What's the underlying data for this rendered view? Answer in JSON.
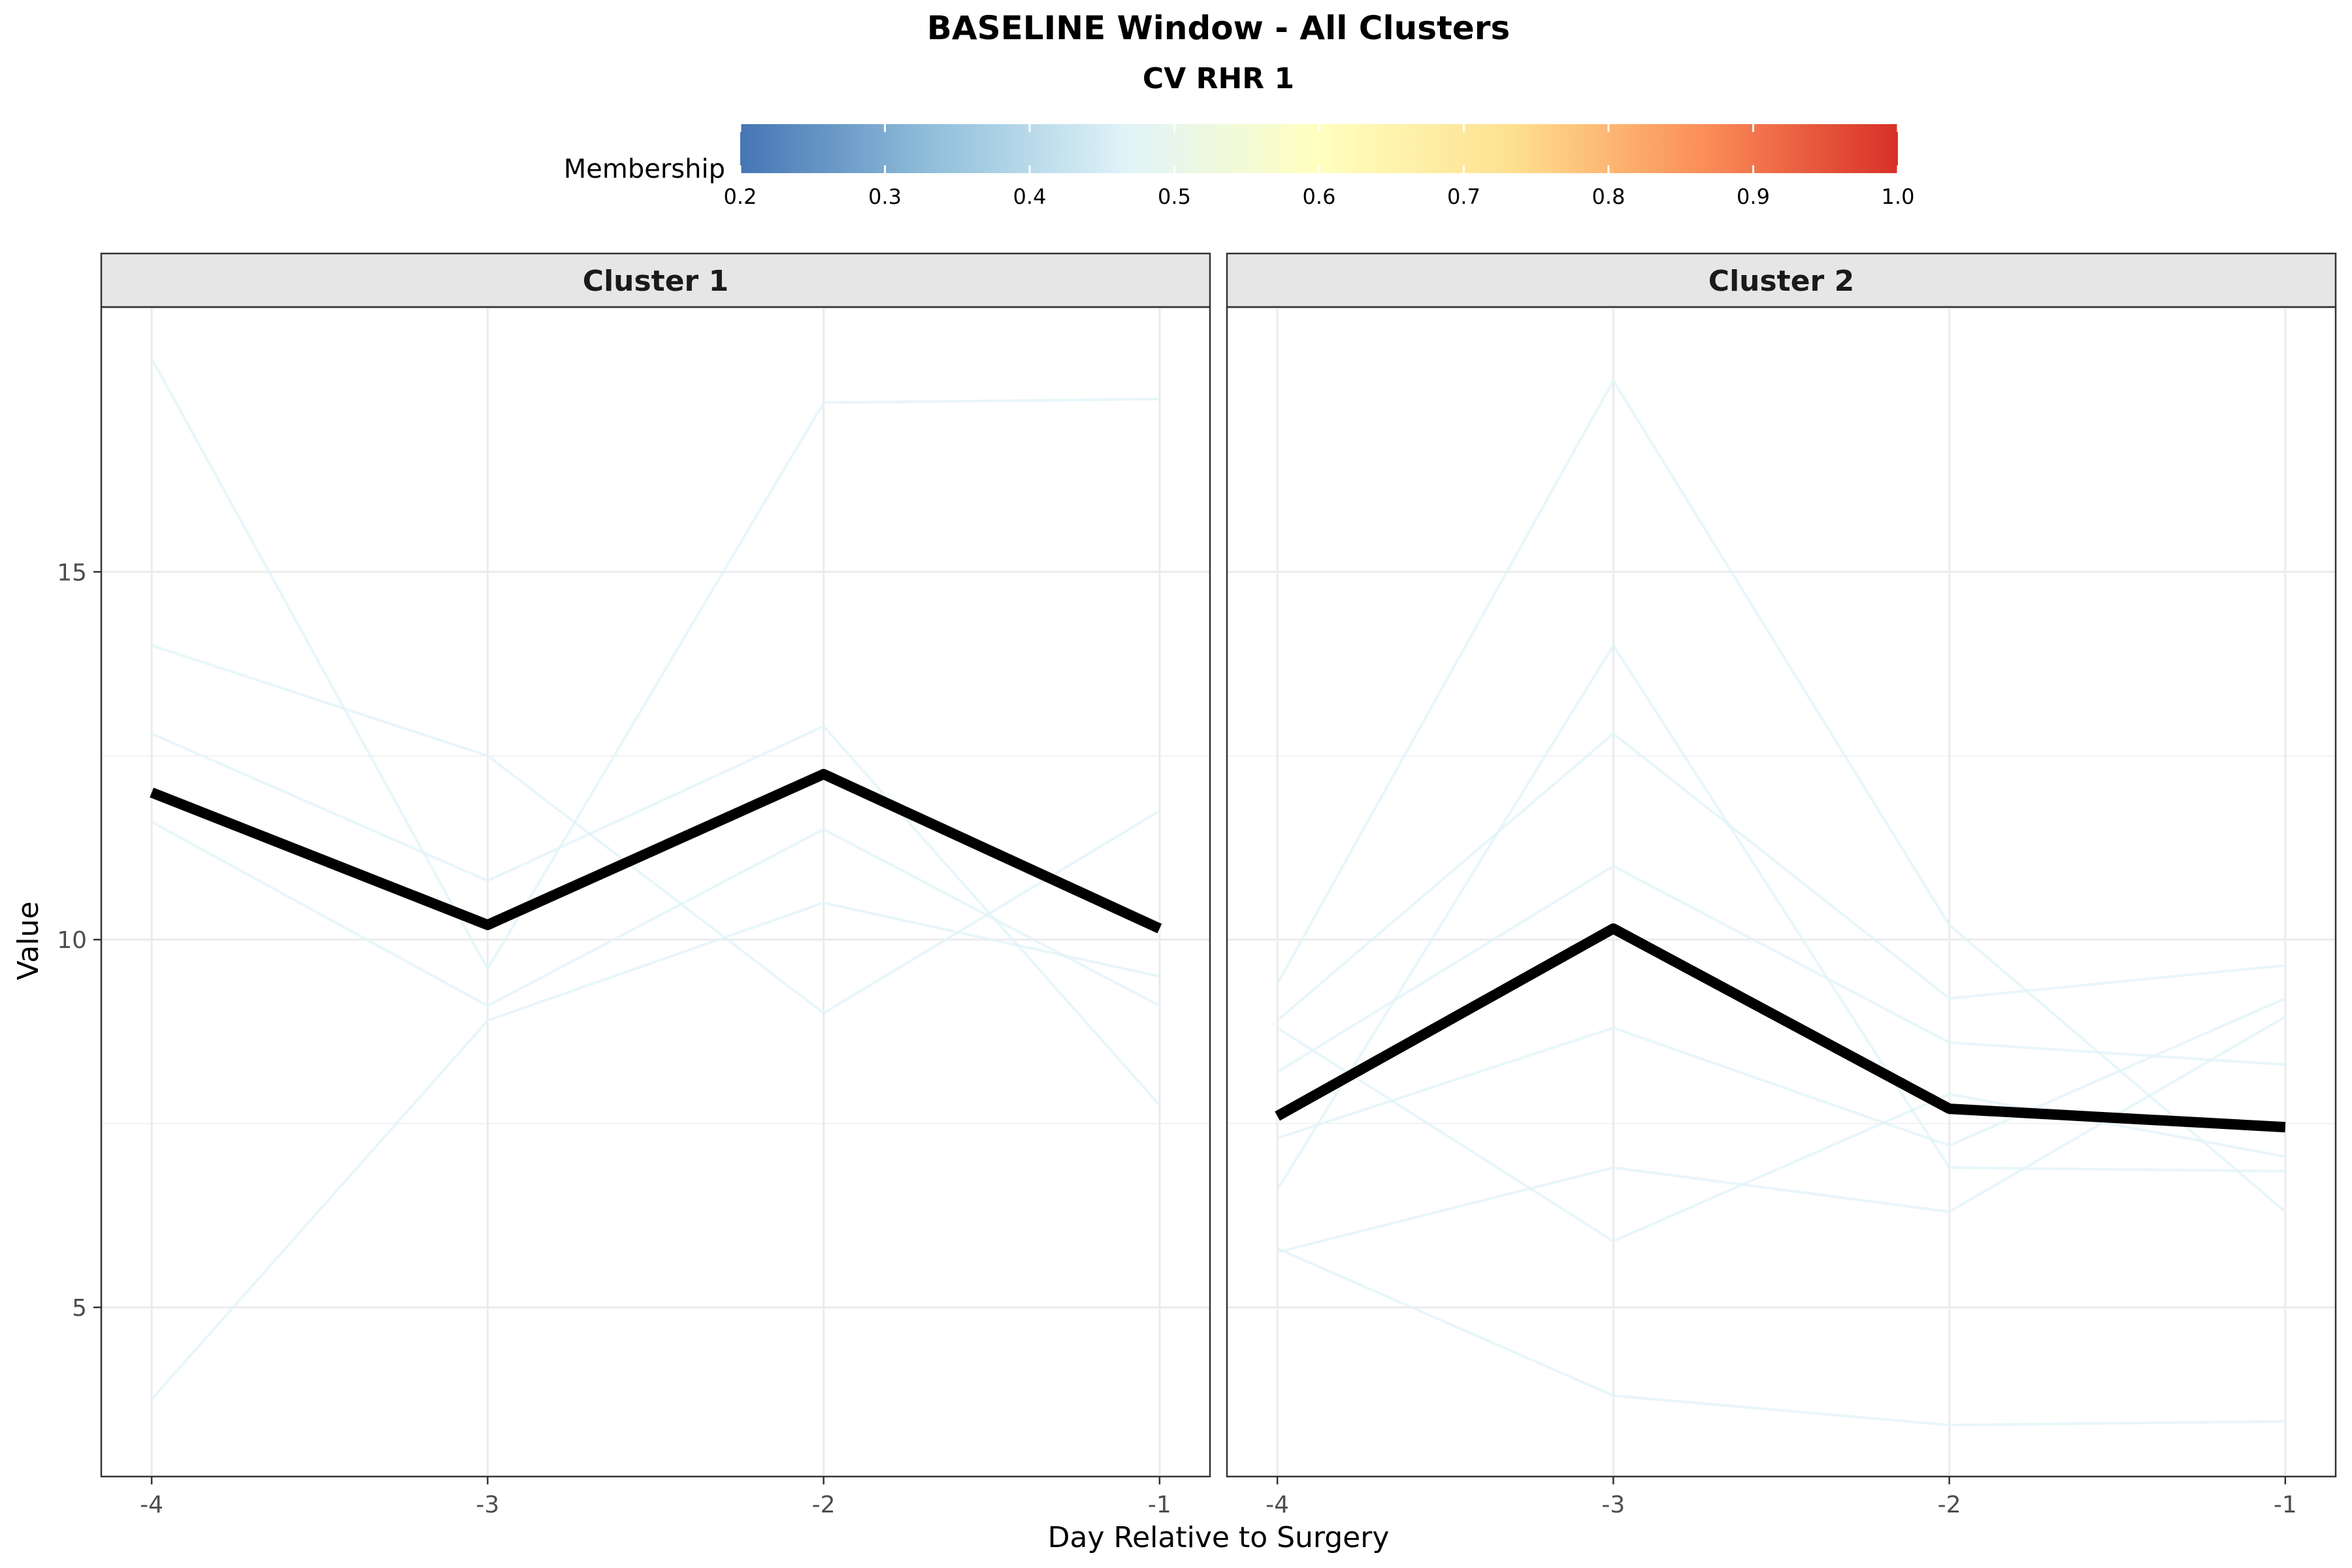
{
  "chart_data": {
    "type": "line",
    "title": "BASELINE Window - All Clusters",
    "subtitle": "CV RHR 1",
    "xlabel": "Day Relative to Surgery",
    "ylabel": "Value",
    "x": [
      -4,
      -3,
      -2,
      -1
    ],
    "x_tick_labels": [
      "-4",
      "-3",
      "-2",
      "-1"
    ],
    "ylim": [
      2.7,
      18.6
    ],
    "y_ticks": [
      5,
      10,
      15
    ],
    "y_tick_labels": [
      "5",
      "10",
      "15"
    ],
    "grid": true,
    "legend": {
      "title": "Membership",
      "placement": "top",
      "type": "colorbar",
      "range": [
        0.2,
        1.0
      ],
      "ticks": [
        "0.2",
        "0.3",
        "0.4",
        "0.5",
        "0.6",
        "0.7",
        "0.8",
        "0.9",
        "1.0"
      ],
      "colors": [
        "#4575b4",
        "#91bfdb",
        "#e0f3f8",
        "#ffffbf",
        "#fee090",
        "#fc8d59",
        "#d73027"
      ]
    },
    "member_line_color": "#e0f3f8",
    "center_line_color": "#000000",
    "panels": [
      {
        "strip": "Cluster 1",
        "center": [
          12.0,
          10.2,
          12.25,
          10.15
        ],
        "members": [
          [
            17.9,
            9.6,
            17.3,
            17.35
          ],
          [
            14.0,
            12.5,
            9.0,
            11.75
          ],
          [
            12.8,
            10.8,
            12.9,
            7.75
          ],
          [
            11.6,
            9.1,
            11.5,
            9.1
          ],
          [
            3.75,
            8.9,
            10.5,
            9.5
          ]
        ]
      },
      {
        "strip": "Cluster 2",
        "center": [
          7.6,
          10.15,
          7.7,
          7.45
        ],
        "members": [
          [
            9.4,
            17.6,
            10.2,
            6.3
          ],
          [
            6.6,
            14.0,
            6.9,
            6.85
          ],
          [
            8.9,
            12.8,
            9.2,
            9.65
          ],
          [
            8.2,
            11.0,
            8.6,
            8.3
          ],
          [
            7.3,
            8.8,
            7.2,
            9.2
          ],
          [
            5.75,
            6.9,
            6.3,
            8.95
          ],
          [
            8.8,
            5.9,
            7.9,
            7.05
          ],
          [
            5.8,
            3.8,
            3.4,
            3.45
          ]
        ]
      }
    ]
  }
}
